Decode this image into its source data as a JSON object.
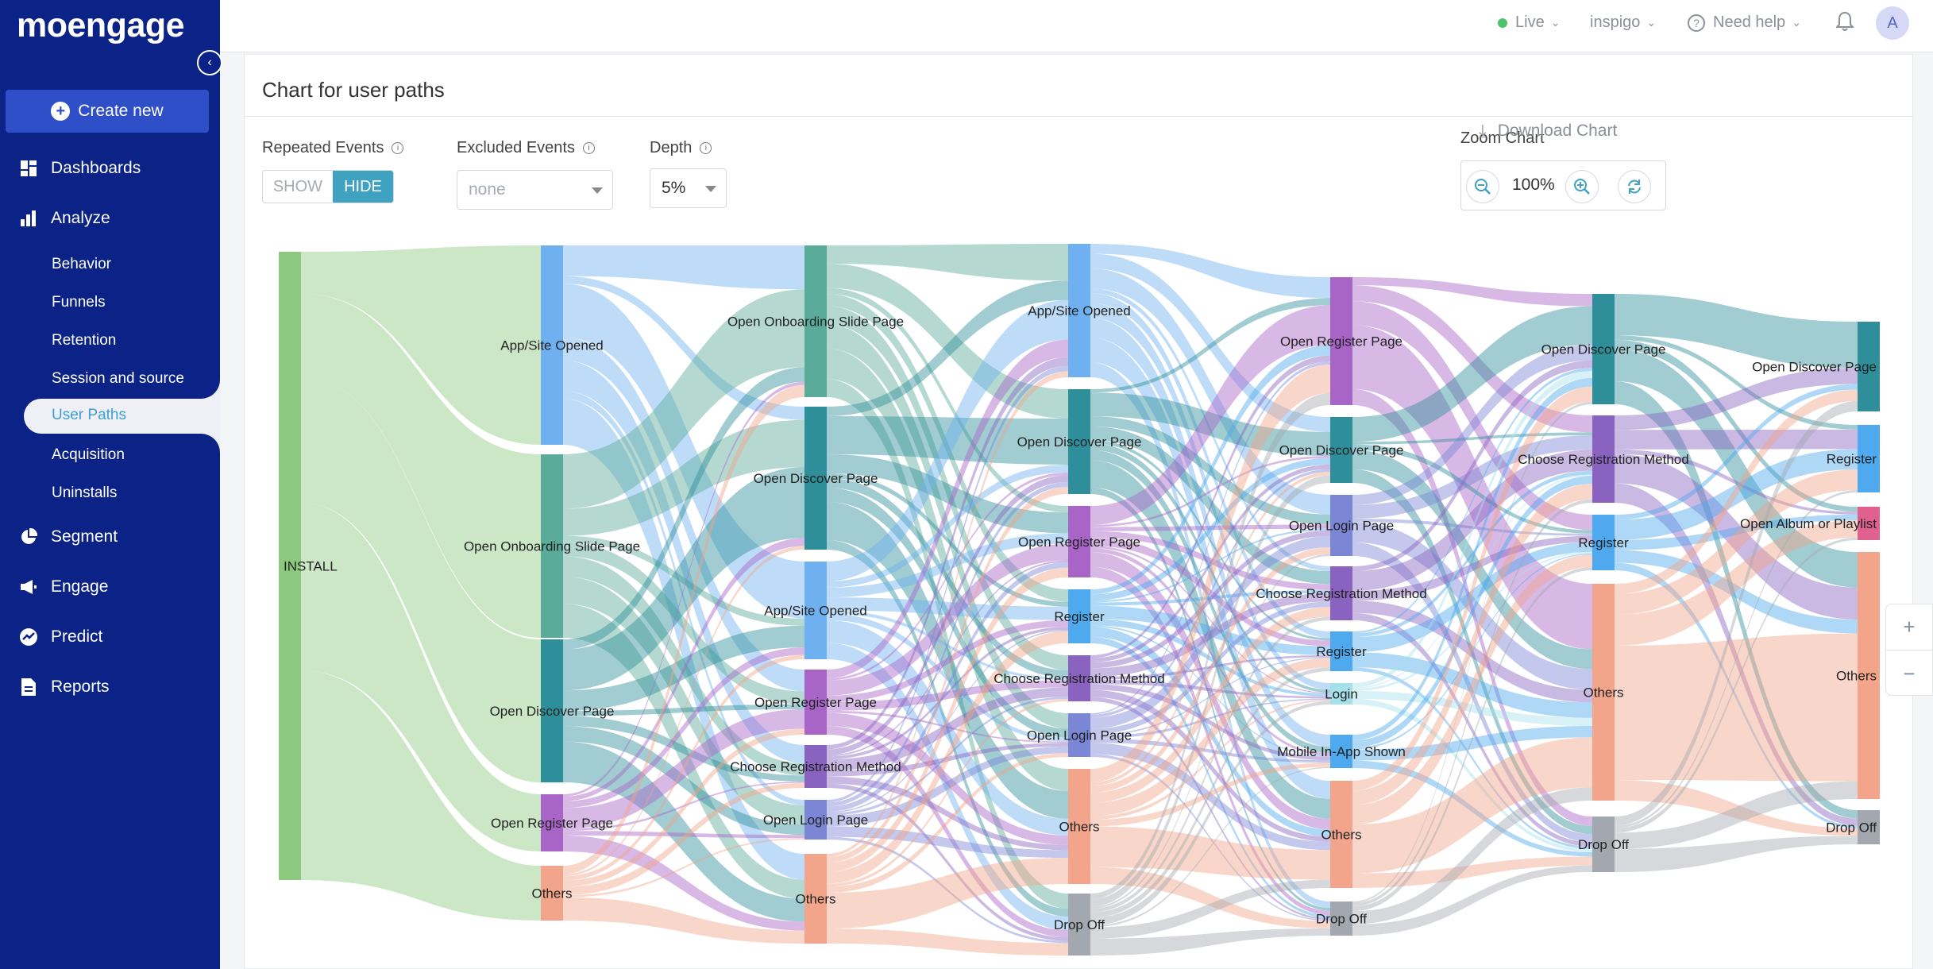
{
  "brand": {
    "logo_text": "moengage"
  },
  "sidebar": {
    "create_new_label": "Create new",
    "items": [
      {
        "label": "Dashboards",
        "icon": "dashboard-icon"
      },
      {
        "label": "Analyze",
        "icon": "bar-chart-icon"
      },
      {
        "label": "Segment",
        "icon": "pie-chart-icon"
      },
      {
        "label": "Engage",
        "icon": "megaphone-icon"
      },
      {
        "label": "Predict",
        "icon": "trend-icon"
      },
      {
        "label": "Reports",
        "icon": "report-icon"
      }
    ],
    "analyze_sub": [
      "Behavior",
      "Funnels",
      "Retention",
      "Session and source",
      "User Paths",
      "Acquisition",
      "Uninstalls"
    ]
  },
  "topbar": {
    "env": "Live",
    "workspace": "inspigo",
    "help": "Need help",
    "avatar_initial": "A"
  },
  "page": {
    "title": "Chart for user paths"
  },
  "controls": {
    "repeated_events_label": "Repeated Events",
    "show_label": "SHOW",
    "hide_label": "HIDE",
    "excluded_events_label": "Excluded Events",
    "excluded_value": "none",
    "depth_label": "Depth",
    "depth_value": "5%",
    "zoom_label": "Zoom Chart",
    "zoom_value": "100%",
    "download_label": "Download Chart"
  },
  "colors": {
    "install": "#8cc97e",
    "app_site_opened": "#6fb1f0",
    "onboarding": "#5aab9a",
    "discover": "#2e8f9a",
    "register_page": "#a964c8",
    "choose_registration": "#8a63c0",
    "login_page": "#7b86d4",
    "register": "#4ea9ee",
    "others": "#f2a58a",
    "drop_off": "#a3a8b0",
    "login": "#a6e0ea",
    "mobile_inapp": "#4ea9ee",
    "album": "#e0608e"
  },
  "chart_data": {
    "type": "sankey",
    "title": "Chart for user paths",
    "columns": [
      [
        "INSTALL"
      ],
      [
        "App/Site Opened",
        "Open Onboarding Slide Page",
        "Open Discover Page",
        "Open Register Page",
        "Others"
      ],
      [
        "Open Onboarding Slide Page",
        "Open Discover Page",
        "App/Site Opened",
        "Open Register Page",
        "Choose Registration Method",
        "Open Login Page",
        "Others"
      ],
      [
        "App/Site Opened",
        "Open Discover Page",
        "Open Register Page",
        "Register",
        "Choose Registration Method",
        "Open Login Page",
        "Others",
        "Drop Off"
      ],
      [
        "Open Register Page",
        "Open Discover Page",
        "Open Login Page",
        "Choose Registration Method",
        "Register",
        "Login",
        "Mobile In-App Shown",
        "Others",
        "Drop Off"
      ],
      [
        "Open Discover Page",
        "Choose Registration Method",
        "Register",
        "Others",
        "Drop Off"
      ],
      [
        "Open Discover Page",
        "Register",
        "Open Album or Playlist",
        "Others",
        "Drop Off"
      ]
    ]
  }
}
